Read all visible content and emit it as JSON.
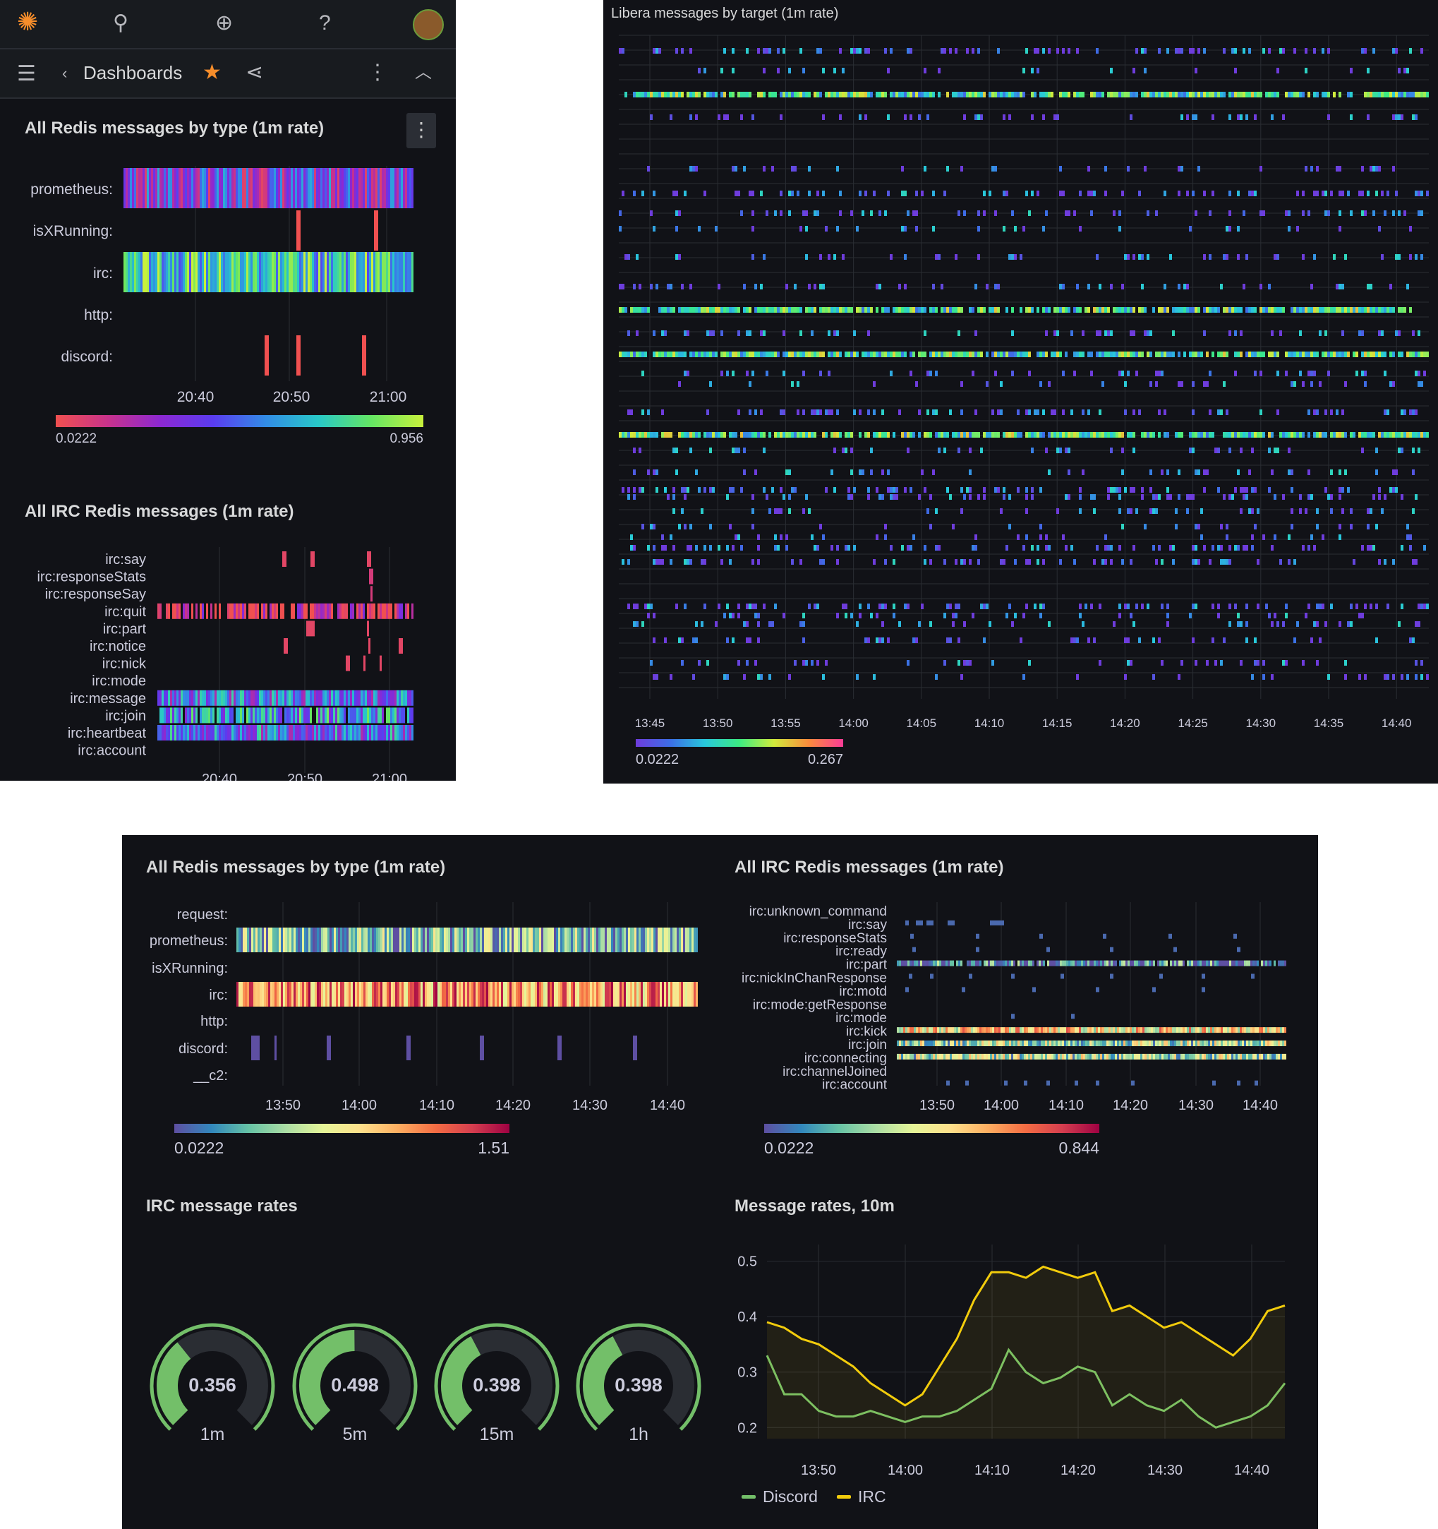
{
  "colors": {
    "panel_bg": "#111217",
    "accent_orange": "#f58d2b",
    "gauge_green": "#73bf69",
    "irc_yellow": "#f2cc0c",
    "discord_green": "#73bf69"
  },
  "mobile": {
    "topbar_icons": [
      "grafana-logo-icon",
      "search-icon",
      "plus-circle-icon",
      "help-icon",
      "avatar"
    ],
    "nav": {
      "breadcrumb": "Dashboards"
    },
    "panel1": {
      "title": "All Redis messages by type (1m rate)",
      "rows": [
        "prometheus:",
        "isXRunning:",
        "irc:",
        "http:",
        "discord:"
      ],
      "ticks": [
        "20:40",
        "20:50",
        "21:00"
      ],
      "scale_min": "0.0222",
      "scale_max": "0.956"
    },
    "panel2": {
      "title": "All IRC Redis messages (1m rate)",
      "rows": [
        "irc:say",
        "irc:responseStats",
        "irc:responseSay",
        "irc:quit",
        "irc:part",
        "irc:notice",
        "irc:nick",
        "irc:mode",
        "irc:message",
        "irc:join",
        "irc:heartbeat",
        "irc:account"
      ],
      "ticks": [
        "20:40",
        "20:50",
        "21:00"
      ]
    }
  },
  "libera": {
    "title": "Libera messages by target (1m rate)",
    "ticks": [
      "13:45",
      "13:50",
      "13:55",
      "14:00",
      "14:05",
      "14:10",
      "14:15",
      "14:20",
      "14:25",
      "14:30",
      "14:35",
      "14:40"
    ],
    "scale_min": "0.0222",
    "scale_max": "0.267"
  },
  "desktop": {
    "panel_types": {
      "title": "All Redis messages by type (1m rate)",
      "rows": [
        "request:",
        "prometheus:",
        "isXRunning:",
        "irc:",
        "http:",
        "discord:",
        "__c2:"
      ],
      "ticks": [
        "13:50",
        "14:00",
        "14:10",
        "14:20",
        "14:30",
        "14:40"
      ],
      "scale_min": "0.0222",
      "scale_max": "1.51"
    },
    "panel_irc": {
      "title": "All IRC Redis messages (1m rate)",
      "rows": [
        "irc:unknown_command",
        "irc:say",
        "irc:responseStats",
        "irc:ready",
        "irc:part",
        "irc:nickInChanResponse",
        "irc:motd",
        "irc:mode:getResponse",
        "irc:mode",
        "irc:kick",
        "irc:join",
        "irc:connecting",
        "irc:channelJoined",
        "irc:account"
      ],
      "ticks": [
        "13:50",
        "14:00",
        "14:10",
        "14:20",
        "14:30",
        "14:40"
      ],
      "scale_min": "0.0222",
      "scale_max": "0.844"
    },
    "gauges": {
      "title": "IRC message rates",
      "items": [
        {
          "label": "1m",
          "value": "0.356",
          "fraction": 0.356
        },
        {
          "label": "5m",
          "value": "0.498",
          "fraction": 0.498
        },
        {
          "label": "15m",
          "value": "0.398",
          "fraction": 0.398
        },
        {
          "label": "1h",
          "value": "0.398",
          "fraction": 0.398
        }
      ]
    }
  },
  "chart_data": {
    "type": "line",
    "title": "Message rates, 10m",
    "x_ticks": [
      "13:50",
      "14:00",
      "14:10",
      "14:20",
      "14:30",
      "14:40"
    ],
    "y_ticks": [
      "0.5",
      "0.4",
      "0.3",
      "0.2"
    ],
    "ylim": [
      0.18,
      0.53
    ],
    "x": [
      "13:44",
      "13:46",
      "13:48",
      "13:50",
      "13:52",
      "13:54",
      "13:56",
      "13:58",
      "14:00",
      "14:02",
      "14:04",
      "14:06",
      "14:08",
      "14:10",
      "14:12",
      "14:14",
      "14:16",
      "14:18",
      "14:20",
      "14:22",
      "14:24",
      "14:26",
      "14:28",
      "14:30",
      "14:32",
      "14:34",
      "14:36",
      "14:38",
      "14:40",
      "14:42",
      "14:44"
    ],
    "series": [
      {
        "name": "Discord",
        "color": "#73bf69",
        "values": [
          0.33,
          0.26,
          0.26,
          0.23,
          0.22,
          0.22,
          0.23,
          0.22,
          0.21,
          0.22,
          0.22,
          0.23,
          0.25,
          0.27,
          0.34,
          0.3,
          0.28,
          0.29,
          0.31,
          0.3,
          0.24,
          0.26,
          0.24,
          0.23,
          0.25,
          0.22,
          0.2,
          0.21,
          0.22,
          0.24,
          0.28
        ]
      },
      {
        "name": "IRC",
        "color": "#f2cc0c",
        "values": [
          0.39,
          0.38,
          0.36,
          0.35,
          0.33,
          0.31,
          0.28,
          0.26,
          0.24,
          0.26,
          0.31,
          0.36,
          0.43,
          0.48,
          0.48,
          0.47,
          0.49,
          0.48,
          0.47,
          0.48,
          0.41,
          0.42,
          0.4,
          0.38,
          0.39,
          0.37,
          0.35,
          0.33,
          0.36,
          0.41,
          0.42
        ]
      }
    ]
  }
}
